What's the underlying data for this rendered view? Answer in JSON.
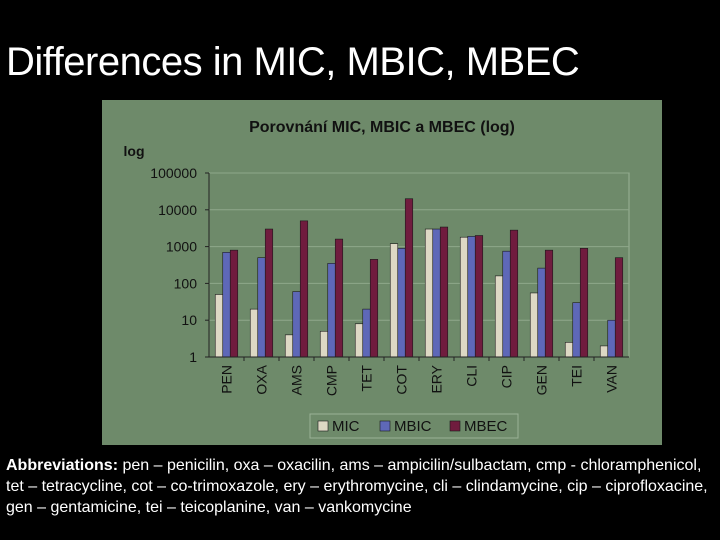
{
  "slide": {
    "title": "Differences in MIC, MBIC, MBEC",
    "abbrev_label": "Abbreviations:",
    "abbrev_text": " pen – penicilin, oxa – oxacilin, ams – ampicilin/sulbactam, cmp - chloramphenicol, tet – tetracycline, cot – co-trimoxazole, ery – erythromycine, cli – clindamycine, cip – ciprofloxacine, gen – gentamicine, tei – teicoplanine, van – vankomycine"
  },
  "colors": {
    "panel_bg": "#6e8a6a",
    "plot_bg": "#6e8a6a",
    "mic": "#ddd8c4",
    "mbic": "#5e68b8",
    "mbec": "#701c3e",
    "axis_text": "#111111",
    "gridline": "#8fa88b"
  },
  "chart_data": {
    "type": "bar",
    "title": "Porovnání MIC, MBIC a MBEC (log)",
    "ylabel": "log",
    "yscale": "log",
    "ylim": [
      1,
      100000
    ],
    "yticks": [
      "1",
      "10",
      "100",
      "1000",
      "10000",
      "100000"
    ],
    "grid": true,
    "legend_position": "bottom",
    "categories": [
      "PEN",
      "OXA",
      "AMS",
      "CMP",
      "TET",
      "COT",
      "ERY",
      "CLI",
      "CIP",
      "GEN",
      "TEI",
      "VAN"
    ],
    "series": [
      {
        "name": "MIC",
        "values": [
          50,
          20,
          4,
          5,
          8,
          1200,
          3000,
          1800,
          160,
          55,
          2.5,
          2
        ]
      },
      {
        "name": "MBIC",
        "values": [
          700,
          500,
          60,
          350,
          20,
          900,
          3000,
          1900,
          750,
          260,
          30,
          10
        ]
      },
      {
        "name": "MBEC",
        "values": [
          800,
          3000,
          5000,
          1600,
          450,
          20000,
          3400,
          2000,
          2800,
          800,
          900,
          500
        ]
      }
    ]
  }
}
